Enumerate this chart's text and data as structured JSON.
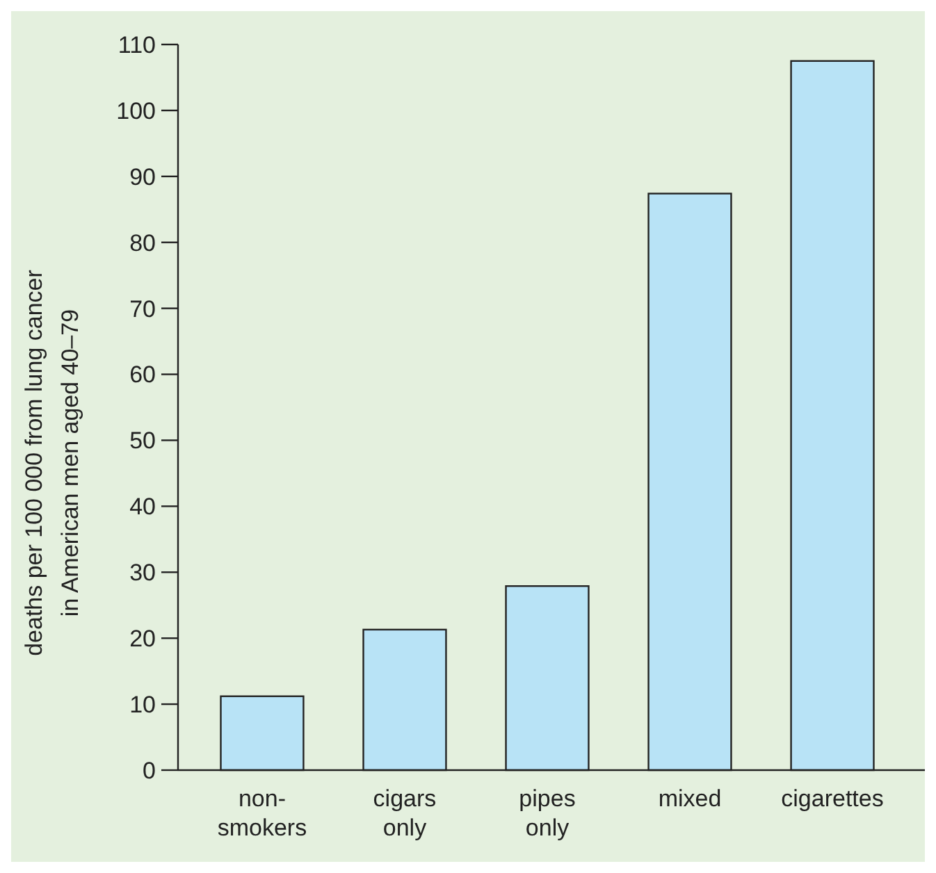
{
  "chart_data": {
    "type": "bar",
    "ylabel": "deaths per 100 000 from lung cancer\nin American men aged 40–79",
    "categories": [
      "non-smokers",
      "cigars only",
      "pipes only",
      "mixed",
      "cigarettes"
    ],
    "values": [
      11.2,
      21.3,
      27.9,
      87.4,
      107.5
    ],
    "color": "#b8e3f6",
    "ylim": [
      0,
      110
    ],
    "yticks": [
      0,
      10,
      20,
      30,
      40,
      50,
      60,
      70,
      80,
      90,
      100,
      110
    ],
    "grid": false
  }
}
